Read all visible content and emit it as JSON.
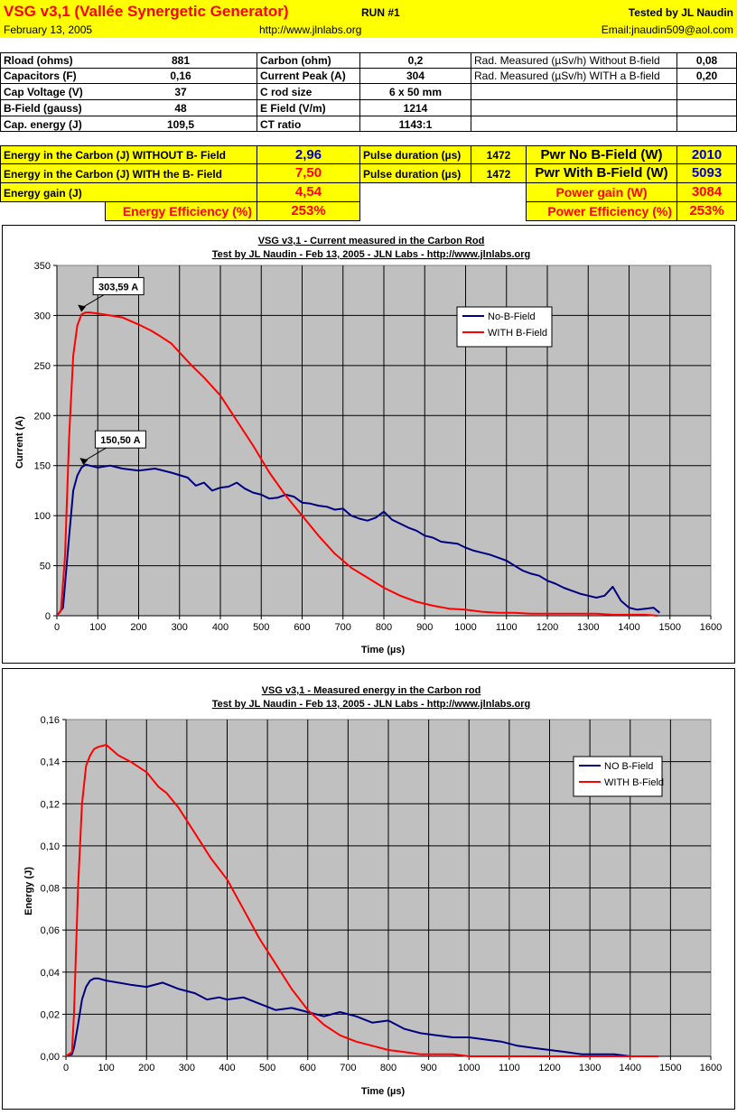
{
  "header": {
    "title": "VSG v3,1 (Vallée Synergetic Generator)",
    "run": "RUN #1",
    "tested_by": "Tested by JL Naudin",
    "date": "February 13, 2005",
    "url": "http://www.jlnlabs.org",
    "email": "Email:jnaudin509@aol.com"
  },
  "params": {
    "rows": [
      {
        "l1": "Rload (ohms)",
        "v1": "881",
        "l2": "Carbon  (ohm)",
        "v2": "0,2",
        "l3": "Rad. Measured (µSv/h) Without B-field",
        "v3": "0,08"
      },
      {
        "l1": "Capacitors (F)",
        "v1": "0,16",
        "l2": "Current Peak (A)",
        "v2": "304",
        "l3": "Rad. Measured (µSv/h) WITH a B-field",
        "v3": "0,20"
      },
      {
        "l1": "Cap Voltage (V)",
        "v1": "37",
        "l2": "C rod size",
        "v2": "6 x 50 mm"
      },
      {
        "l1": "B-Field (gauss)",
        "v1": "48",
        "l2": "E Field (V/m)",
        "v2": "1214"
      },
      {
        "l1": "Cap. energy (J)",
        "v1": "109,5",
        "l2": "CT ratio",
        "v2": "1143:1"
      }
    ]
  },
  "results": {
    "energy_without_label": "Energy in the Carbon (J) WITHOUT B- Field",
    "energy_without": "2,96",
    "energy_with_label": "Energy in the Carbon (J) WITH the B- Field",
    "energy_with": "7,50",
    "pulse_label": "Pulse duration (µs)",
    "pulse1": "1472",
    "pulse2": "1472",
    "pwr_no_label": "Pwr No B-Field (W)",
    "pwr_no": "2010",
    "pwr_with_label": "Pwr With B-Field (W)",
    "pwr_with": "5093",
    "energy_gain_label": "Energy gain (J)",
    "energy_gain": "4,54",
    "power_gain_label": "Power gain (W)",
    "power_gain": "3084",
    "energy_eff_label": "Energy Efficiency (%)",
    "energy_eff": "253%",
    "power_eff_label": "Power Efficiency (%)",
    "power_eff": "253%"
  },
  "colors": {
    "header_yellow": "#ffff00",
    "plot_grey": "#c0c0c0",
    "series_blue": "#000080",
    "series_red": "#ff0000"
  },
  "chart_data": [
    {
      "type": "line",
      "title": "VSG v3,1 - Current measured in the Carbon Rod",
      "subtitle": "Test by JL Naudin - Feb 13, 2005 - JLN Labs - http://www.jlnlabs.org",
      "xlabel": "Time (µs)",
      "ylabel": "Current (A)",
      "xlim": [
        0,
        1600
      ],
      "ylim": [
        0,
        350
      ],
      "xticks": [
        "0",
        "100",
        "200",
        "300",
        "400",
        "500",
        "600",
        "700",
        "800",
        "900",
        "1000",
        "1100",
        "1200",
        "1300",
        "1400",
        "1500",
        "1600"
      ],
      "yticks": [
        "0",
        "50",
        "100",
        "150",
        "200",
        "250",
        "300",
        "350"
      ],
      "grid": true,
      "legend": "top-right",
      "annotations": [
        {
          "text": "303,59 A",
          "x": 60,
          "y": 303.59
        },
        {
          "text": "150,50 A",
          "x": 65,
          "y": 150.5
        }
      ],
      "series": [
        {
          "name": "No-B-Field",
          "color": "#000080",
          "x": [
            0,
            15,
            30,
            40,
            50,
            60,
            70,
            80,
            100,
            130,
            160,
            200,
            240,
            280,
            320,
            340,
            360,
            380,
            400,
            420,
            440,
            460,
            480,
            500,
            520,
            540,
            560,
            580,
            600,
            620,
            640,
            660,
            680,
            700,
            720,
            740,
            760,
            780,
            800,
            820,
            840,
            860,
            880,
            900,
            920,
            940,
            960,
            980,
            1000,
            1020,
            1040,
            1060,
            1080,
            1100,
            1120,
            1140,
            1160,
            1180,
            1200,
            1220,
            1240,
            1260,
            1280,
            1300,
            1320,
            1340,
            1360,
            1380,
            1400,
            1420,
            1440,
            1460,
            1475
          ],
          "y": [
            0,
            8,
            80,
            125,
            140,
            148,
            151,
            150,
            148,
            150,
            147,
            145,
            147,
            143,
            138,
            130,
            133,
            125,
            128,
            129,
            133,
            127,
            123,
            121,
            117,
            118,
            121,
            119,
            113,
            112,
            110,
            109,
            106,
            107,
            100,
            97,
            95,
            98,
            104,
            96,
            92,
            88,
            85,
            80,
            78,
            74,
            73,
            72,
            68,
            65,
            63,
            61,
            58,
            55,
            50,
            45,
            42,
            40,
            35,
            32,
            28,
            25,
            22,
            20,
            18,
            20,
            29,
            15,
            8,
            6,
            7,
            8,
            3
          ]
        },
        {
          "name": "WITH B-Field",
          "color": "#ff0000",
          "x": [
            0,
            10,
            20,
            30,
            40,
            50,
            60,
            70,
            80,
            100,
            130,
            160,
            200,
            230,
            250,
            280,
            300,
            330,
            360,
            400,
            440,
            480,
            520,
            560,
            600,
            640,
            680,
            720,
            760,
            800,
            840,
            880,
            920,
            960,
            1000,
            1040,
            1080,
            1120,
            1160,
            1200,
            1240,
            1280,
            1320,
            1360,
            1400,
            1440,
            1470
          ],
          "y": [
            0,
            5,
            60,
            180,
            260,
            290,
            301,
            303,
            303,
            302,
            300,
            298,
            291,
            285,
            280,
            272,
            263,
            250,
            238,
            220,
            195,
            170,
            143,
            120,
            100,
            80,
            62,
            48,
            38,
            28,
            20,
            14,
            10,
            7,
            6,
            4,
            3,
            3,
            2,
            2,
            2,
            2,
            2,
            1,
            1,
            1,
            0
          ]
        }
      ]
    },
    {
      "type": "line",
      "title": "VSG v3,1 - Measured energy in the Carbon rod",
      "subtitle": "Test by JL Naudin - Feb 13, 2005 - JLN Labs - http://www.jlnlabs.org",
      "xlabel": "Time (µs)",
      "ylabel": "Energy (J)",
      "xlim": [
        0,
        1600
      ],
      "ylim": [
        0,
        0.16
      ],
      "xticks": [
        "0",
        "100",
        "200",
        "300",
        "400",
        "500",
        "600",
        "700",
        "800",
        "900",
        "1000",
        "1100",
        "1200",
        "1300",
        "1400",
        "1500",
        "1600"
      ],
      "yticks": [
        "0,00",
        "0,02",
        "0,04",
        "0,06",
        "0,08",
        "0,10",
        "0,12",
        "0,14",
        "0,16"
      ],
      "grid": true,
      "legend": "top-right",
      "series": [
        {
          "name": "NO B-Field",
          "color": "#000080",
          "x": [
            0,
            15,
            20,
            30,
            40,
            50,
            60,
            70,
            80,
            100,
            130,
            160,
            200,
            240,
            280,
            320,
            350,
            380,
            400,
            440,
            480,
            520,
            560,
            600,
            640,
            680,
            720,
            760,
            800,
            840,
            880,
            920,
            960,
            1000,
            1040,
            1080,
            1120,
            1160,
            1200,
            1240,
            1280,
            1320,
            1360,
            1400
          ],
          "y": [
            0,
            0.001,
            0.004,
            0.015,
            0.027,
            0.033,
            0.036,
            0.037,
            0.037,
            0.036,
            0.035,
            0.034,
            0.033,
            0.035,
            0.032,
            0.03,
            0.027,
            0.028,
            0.027,
            0.028,
            0.025,
            0.022,
            0.023,
            0.021,
            0.019,
            0.021,
            0.019,
            0.016,
            0.017,
            0.013,
            0.011,
            0.01,
            0.009,
            0.009,
            0.008,
            0.007,
            0.005,
            0.004,
            0.003,
            0.002,
            0.001,
            0.001,
            0.001,
            0
          ]
        },
        {
          "name": "WITH B-Field",
          "color": "#ff0000",
          "x": [
            0,
            15,
            20,
            30,
            40,
            50,
            60,
            70,
            80,
            100,
            130,
            160,
            200,
            230,
            250,
            280,
            300,
            330,
            360,
            400,
            440,
            480,
            520,
            560,
            600,
            640,
            680,
            720,
            760,
            800,
            840,
            880,
            920,
            960,
            1000,
            1040,
            1080,
            1120,
            1160,
            1200,
            1240,
            1280,
            1320,
            1360,
            1400,
            1440,
            1470
          ],
          "y": [
            0,
            0.002,
            0.02,
            0.08,
            0.12,
            0.138,
            0.143,
            0.146,
            0.147,
            0.148,
            0.143,
            0.14,
            0.135,
            0.128,
            0.125,
            0.118,
            0.112,
            0.103,
            0.094,
            0.084,
            0.07,
            0.056,
            0.044,
            0.032,
            0.022,
            0.015,
            0.01,
            0.007,
            0.005,
            0.003,
            0.002,
            0.001,
            0.001,
            0.001,
            0,
            0,
            0,
            0,
            0,
            0,
            0,
            0,
            0,
            0,
            0,
            0,
            0
          ]
        }
      ]
    }
  ]
}
